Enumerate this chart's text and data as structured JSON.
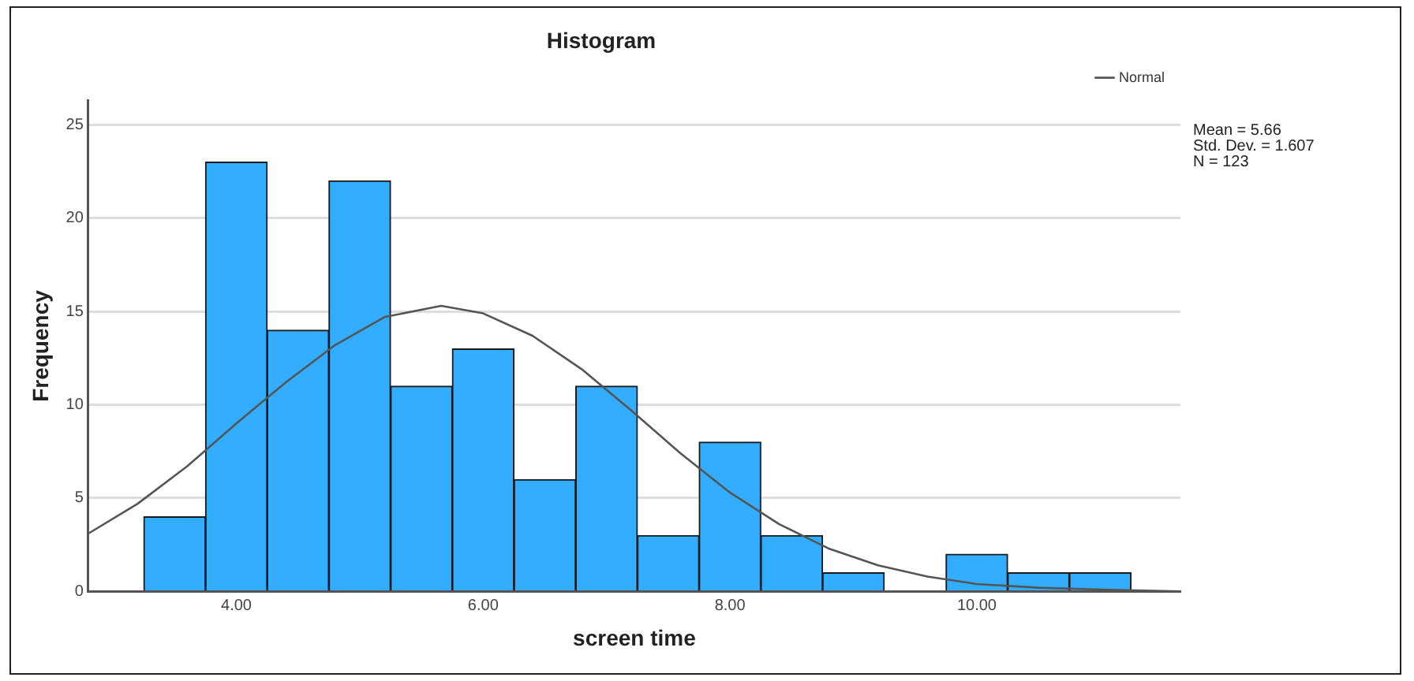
{
  "chart_data": {
    "type": "histogram",
    "title": "Histogram",
    "xlabel": "screen time",
    "ylabel": "Frequency",
    "bins": [
      3.25,
      3.75,
      4.25,
      4.75,
      5.25,
      5.75,
      6.25,
      6.75,
      7.25,
      7.75,
      8.25,
      8.75,
      9.25,
      9.75,
      10.25,
      10.75,
      11.25
    ],
    "series": [
      {
        "color": "#33adff",
        "values": [
          4,
          23,
          14,
          22,
          11,
          13,
          6,
          11,
          3,
          8,
          3,
          1,
          0,
          2,
          1,
          1
        ]
      },
      {
        "type": "line",
        "name": "Normal",
        "color": "#555555",
        "x": [
          2.8,
          3.2,
          3.6,
          4.0,
          4.4,
          4.8,
          5.2,
          5.66,
          6.0,
          6.4,
          6.8,
          7.2,
          7.6,
          8.0,
          8.4,
          8.8,
          9.2,
          9.6,
          10.0,
          10.5,
          11.0,
          11.65
        ],
        "values": [
          3.1,
          4.7,
          6.7,
          9.0,
          11.2,
          13.2,
          14.7,
          15.3,
          14.9,
          13.7,
          11.9,
          9.7,
          7.4,
          5.3,
          3.6,
          2.3,
          1.4,
          0.8,
          0.4,
          0.2,
          0.1,
          0.0
        ]
      }
    ],
    "xlim": [
      2.8,
      11.65
    ],
    "xticks": [
      {
        "value": 4,
        "label": "4.00"
      },
      {
        "value": 6,
        "label": "6.00"
      },
      {
        "value": 8,
        "label": "8.00"
      },
      {
        "value": 10,
        "label": "10.00"
      }
    ],
    "ylim": [
      0,
      26.3
    ],
    "yticks": [
      0,
      5,
      10,
      15,
      20,
      25
    ],
    "grid": "y",
    "legend": "top right",
    "annotations": [
      "Mean = 5.66",
      "Std. Dev. = 1.607",
      "N = 123"
    ]
  }
}
